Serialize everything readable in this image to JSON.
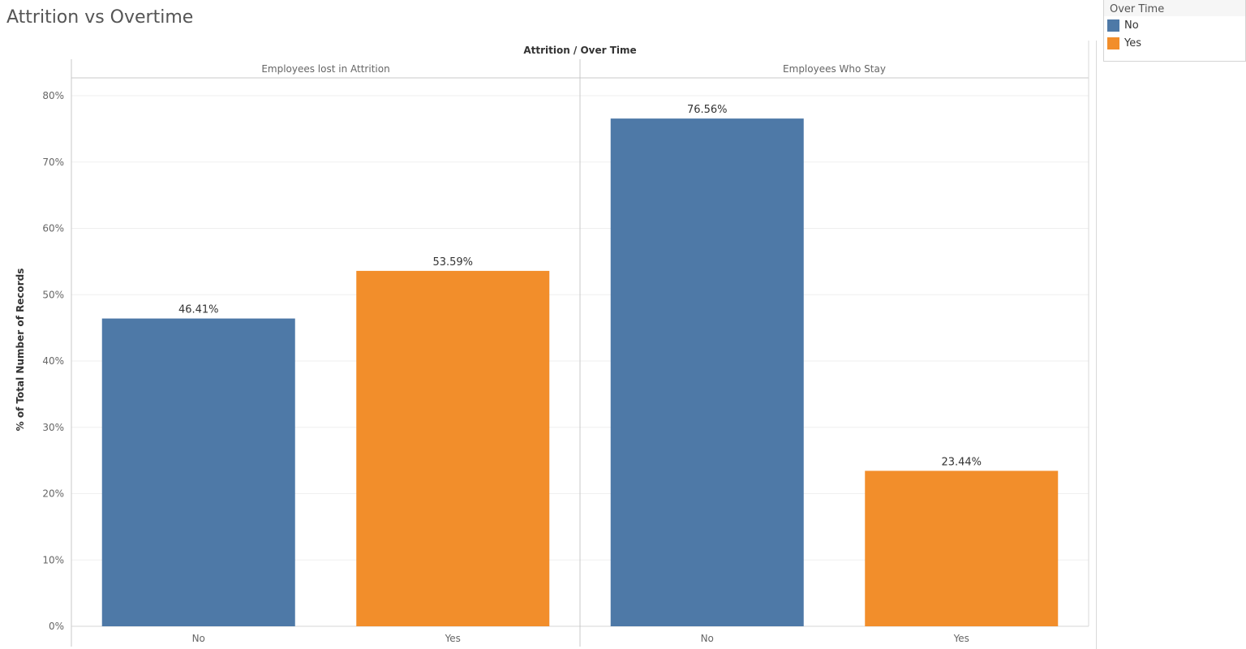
{
  "title": "Attrition vs Overtime",
  "legend": {
    "title": "Over Time",
    "items": [
      {
        "label": "No",
        "color": "#4e79a7"
      },
      {
        "label": "Yes",
        "color": "#f28e2b"
      }
    ]
  },
  "chart_data": {
    "type": "bar",
    "column_header": "Attrition / Over Time",
    "ylabel": "% of Total Number of Records",
    "ylim": [
      0,
      80
    ],
    "yticks": [
      "0%",
      "10%",
      "20%",
      "30%",
      "40%",
      "50%",
      "60%",
      "70%",
      "80%"
    ],
    "yticks_values": [
      0,
      10,
      20,
      30,
      40,
      50,
      60,
      70,
      80
    ],
    "grid": true,
    "legend_position": "top-right",
    "panels": [
      {
        "name": "Employees lost in Attrition",
        "categories": [
          "No",
          "Yes"
        ],
        "values": [
          46.41,
          53.59
        ],
        "labels": [
          "46.41%",
          "53.59%"
        ],
        "colors": [
          "#4e79a7",
          "#f28e2b"
        ]
      },
      {
        "name": "Employees Who Stay",
        "categories": [
          "No",
          "Yes"
        ],
        "values": [
          76.56,
          23.44
        ],
        "labels": [
          "76.56%",
          "23.44%"
        ],
        "colors": [
          "#4e79a7",
          "#f28e2b"
        ]
      }
    ]
  }
}
